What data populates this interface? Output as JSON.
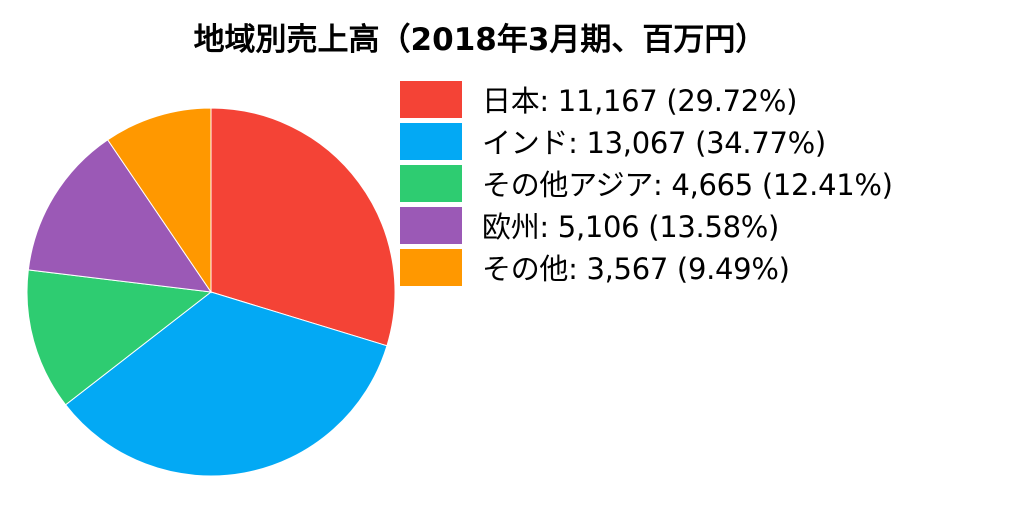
{
  "chart_data": {
    "type": "pie",
    "title": "地域別売上高（2018年3月期、百万円）",
    "legend_position": "right",
    "slices": [
      {
        "label": "日本",
        "value": 11167,
        "percent": 29.72,
        "legend_text": "日本: 11,167 (29.72%)",
        "color": "#F44336"
      },
      {
        "label": "インド",
        "value": 13067,
        "percent": 34.77,
        "legend_text": "インド: 13,067 (34.77%)",
        "color": "#03A9F4"
      },
      {
        "label": "その他アジア",
        "value": 4665,
        "percent": 12.41,
        "legend_text": "その他アジア: 4,665 (12.41%)",
        "color": "#2ECC71"
      },
      {
        "label": "欧州",
        "value": 5106,
        "percent": 13.58,
        "legend_text": "欧州: 5,106 (13.58%)",
        "color": "#9B59B6"
      },
      {
        "label": "その他",
        "value": 3567,
        "percent": 9.49,
        "legend_text": "その他: 3,567 (9.49%)",
        "color": "#FF9800"
      }
    ]
  }
}
